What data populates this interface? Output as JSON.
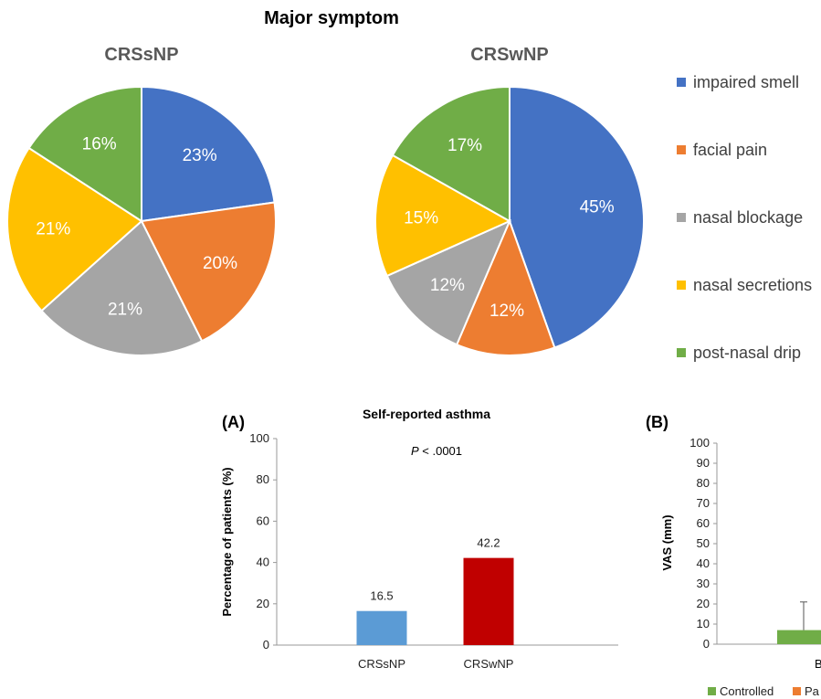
{
  "major_symptom_title": "Major symptom",
  "legend": [
    {
      "label": "impaired smell",
      "color": "#4472C4"
    },
    {
      "label": "facial pain",
      "color": "#ED7D31"
    },
    {
      "label": "nasal blockage",
      "color": "#A5A5A5"
    },
    {
      "label": "nasal secretions",
      "color": "#FFC000"
    },
    {
      "label": "post-nasal drip",
      "color": "#70AD47"
    }
  ],
  "chart_data": [
    {
      "type": "pie",
      "title": "CRSsNP",
      "categories": [
        "impaired smell",
        "facial pain",
        "nasal blockage",
        "nasal secretions",
        "post-nasal drip"
      ],
      "values": [
        23,
        20,
        21,
        21,
        16
      ],
      "labels": [
        "23%",
        "20%",
        "21%",
        "21%",
        "16%"
      ]
    },
    {
      "type": "pie",
      "title": "CRSwNP",
      "categories": [
        "impaired smell",
        "facial pain",
        "nasal blockage",
        "nasal secretions",
        "post-nasal drip"
      ],
      "values": [
        45,
        12,
        12,
        15,
        17
      ],
      "labels": [
        "45%",
        "12%",
        "12%",
        "15%",
        "17%"
      ]
    },
    {
      "type": "bar",
      "panel": "(A)",
      "title": "Self-reported asthma",
      "annotation_p": "P",
      "annotation_rest": " < .0001",
      "ylabel": "Percentage of patients (%)",
      "categories": [
        "CRSsNP",
        "CRSwNP"
      ],
      "values": [
        16.5,
        42.2
      ],
      "value_labels": [
        "16.5",
        "42.2"
      ],
      "colors": [
        "#5B9BD5",
        "#C00000"
      ],
      "ylim": [
        0,
        100
      ],
      "yticks": [
        0,
        20,
        40,
        60,
        80,
        100
      ]
    },
    {
      "type": "bar",
      "panel": "(B)",
      "ylabel": "VAS (mm)",
      "ylim": [
        0,
        100
      ],
      "yticks": [
        0,
        10,
        20,
        30,
        40,
        50,
        60,
        70,
        80,
        90,
        100
      ],
      "category_partial": "B",
      "bar_value": 7,
      "error_high": 21,
      "bar_color": "#70AD47",
      "legend": [
        {
          "label": "Controlled",
          "color": "#70AD47"
        },
        {
          "label": "Pa",
          "color": "#ED7D31"
        }
      ]
    }
  ]
}
